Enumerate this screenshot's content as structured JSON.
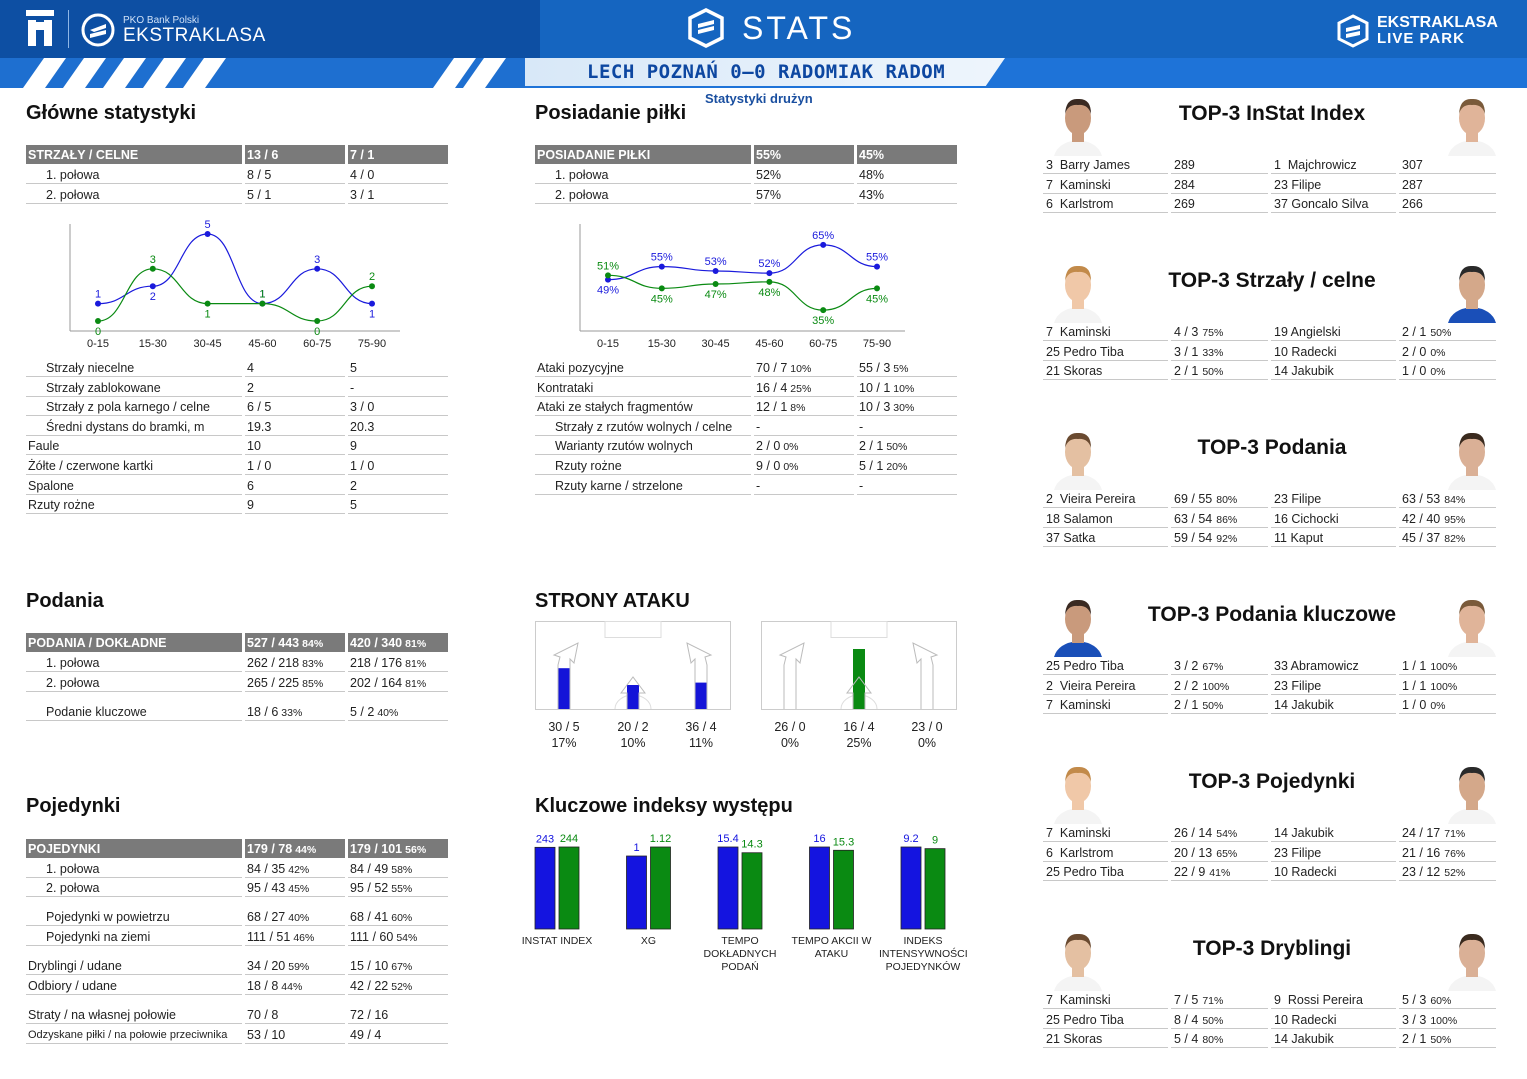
{
  "header": {
    "pko_small": "PKO Bank Polski",
    "league": "EKSTRAKLASA",
    "stats": "STATS",
    "lp_line1": "EKSTRAKLASA",
    "lp_line2": "LIVE PARK",
    "match": "LECH POZNAŃ 0–0 RADOMIAK RADOM",
    "subtitle": "Statystyki drużyn",
    "colors": {
      "primary": "#1565c0",
      "team1": "#1a1adc",
      "team2": "#0a8a12"
    }
  },
  "main": {
    "title": "Główne statystyki",
    "head": [
      "STRZAŁY / CELNE",
      "13 / 6",
      "7 / 1"
    ],
    "halves": [
      [
        "1. połowa",
        "8 / 5",
        "4 / 0"
      ],
      [
        "2. połowa",
        "5 / 1",
        "3 / 1"
      ]
    ],
    "rows": [
      [
        "Strzały niecelne",
        "4",
        "5",
        1
      ],
      [
        "Strzały zablokowane",
        "2",
        "-",
        1
      ],
      [
        "Strzały z pola karnego / celne",
        "6 / 5",
        "3 / 0",
        1
      ],
      [
        "Średni dystans do bramki, m",
        "19.3",
        "20.3",
        1
      ],
      [
        "Faule",
        "10",
        "9",
        0
      ],
      [
        "Żółte / czerwone kartki",
        "1 / 0",
        "1 / 0",
        0
      ],
      [
        "Spalone",
        "6",
        "2",
        0
      ],
      [
        "Rzuty rożne",
        "9",
        "5",
        0
      ]
    ]
  },
  "shots_chart": {
    "type": "line",
    "categories": [
      "0-15",
      "15-30",
      "30-45",
      "45-60",
      "60-75",
      "75-90"
    ],
    "series": [
      {
        "values": [
          1,
          2,
          5,
          1,
          3,
          1
        ],
        "color": "#1a1adc"
      },
      {
        "values": [
          0,
          3,
          1,
          1,
          0,
          2
        ],
        "color": "#0a8a12"
      }
    ],
    "ylim": [
      0,
      5
    ]
  },
  "possession": {
    "title": "Posiadanie piłki",
    "head": [
      "POSIADANIE PIŁKI",
      "55%",
      "45%"
    ],
    "halves": [
      [
        "1. połowa",
        "52%",
        "48%"
      ],
      [
        "2. połowa",
        "57%",
        "43%"
      ]
    ],
    "rows": [
      [
        "Ataki pozycyjne",
        "70 / 7",
        "10%",
        "55 / 3",
        "5%",
        0
      ],
      [
        "Kontrataki",
        "16 / 4",
        "25%",
        "10 / 1",
        "10%",
        0
      ],
      [
        "Ataki ze stałych fragmentów",
        "12 / 1",
        "8%",
        "10 / 3",
        "30%",
        0
      ],
      [
        "Strzały z rzutów wolnych / celne",
        "-",
        "",
        "-",
        "",
        1
      ],
      [
        "Warianty rzutów wolnych",
        "2 / 0",
        "0%",
        "2 / 1",
        "50%",
        1
      ],
      [
        "Rzuty rożne",
        "9 / 0",
        "0%",
        "5 / 1",
        "20%",
        1
      ],
      [
        "Rzuty karne / strzelone",
        "-",
        "",
        "-",
        "",
        1
      ]
    ]
  },
  "poss_chart": {
    "type": "line",
    "categories": [
      "0-15",
      "15-30",
      "30-45",
      "45-60",
      "60-75",
      "75-90"
    ],
    "series": [
      {
        "values": [
          49,
          55,
          53,
          52,
          65,
          55
        ],
        "labels": [
          "49%",
          "55%",
          "53%",
          "52%",
          "65%",
          "55%"
        ],
        "color": "#1a1adc"
      },
      {
        "values": [
          51,
          45,
          47,
          48,
          35,
          45
        ],
        "labels": [
          "51%",
          "45%",
          "47%",
          "48%",
          "35%",
          "45%"
        ],
        "color": "#0a8a12"
      }
    ],
    "ylim": [
      30,
      70
    ]
  },
  "passes": {
    "title": "Podania",
    "head": [
      "PODANIA / DOKŁADNE",
      "527 / 443",
      "84%",
      "420 / 340",
      "81%"
    ],
    "rows": [
      [
        "1. połowa",
        "262 / 218",
        "83%",
        "218 / 176",
        "81%"
      ],
      [
        "2. połowa",
        "265 / 225",
        "85%",
        "202 / 164",
        "81%"
      ],
      [
        "Podanie kluczowe",
        "18 / 6",
        "33%",
        "5 / 2",
        "40%"
      ]
    ]
  },
  "attack_sides": {
    "title": "STRONY ATAKU",
    "team1": [
      {
        "value": "30 / 5",
        "pct": "17%",
        "fill": 0.17
      },
      {
        "value": "20 / 2",
        "pct": "10%",
        "fill": 0.1
      },
      {
        "value": "36 / 4",
        "pct": "11%",
        "fill": 0.11
      }
    ],
    "team2": [
      {
        "value": "26 / 0",
        "pct": "0%",
        "fill": 0
      },
      {
        "value": "16 / 4",
        "pct": "25%",
        "fill": 0.25
      },
      {
        "value": "23 / 0",
        "pct": "0%",
        "fill": 0
      }
    ]
  },
  "duels": {
    "title": "Pojedynki",
    "head": [
      "POJEDYNKI",
      "179 / 78",
      "44%",
      "179 / 101",
      "56%"
    ],
    "rows": [
      [
        "1. połowa",
        "84 / 35",
        "42%",
        "84 / 49",
        "58%",
        1
      ],
      [
        "2. połowa",
        "95 / 43",
        "45%",
        "95 / 52",
        "55%",
        1
      ],
      [
        "Pojedynki w powietrzu",
        "68 / 27",
        "40%",
        "68 / 41",
        "60%",
        1
      ],
      [
        "Pojedynki na ziemi",
        "111 / 51",
        "46%",
        "111 / 60",
        "54%",
        1
      ],
      [
        "Dryblingi / udane",
        "34 / 20",
        "59%",
        "15 / 10",
        "67%",
        0
      ],
      [
        "Odbiory / udane",
        "18 / 8",
        "44%",
        "42 / 22",
        "52%",
        0
      ],
      [
        "Straty / na własnej połowie",
        "70 / 8",
        "",
        "72 / 16",
        "",
        0
      ],
      [
        "Odzyskane piłki / na połowie przeciwnika",
        "53 / 10",
        "",
        "49 / 4",
        "",
        0
      ]
    ]
  },
  "key_index": {
    "title": "Kluczowe indeksy występu",
    "type": "bar",
    "groups": [
      {
        "label": "INSTAT INDEX",
        "v1": "243",
        "v2": "244",
        "r1": 0.996,
        "r2": 1.0
      },
      {
        "label": "XG",
        "v1": "1",
        "v2": "1.12",
        "r1": 0.89,
        "r2": 1.0
      },
      {
        "label": "TEMPO DOKŁADNYCH PODAŃ",
        "v1": "15.4",
        "v2": "14.3",
        "r1": 1.0,
        "r2": 0.93
      },
      {
        "label": "TEMPO AKCII W ATAKU",
        "v1": "16",
        "v2": "15.3",
        "r1": 1.0,
        "r2": 0.96
      },
      {
        "label": "INDEKS INTENSYWNOŚCI POJEDYNKÓW",
        "v1": "9.2",
        "v2": "9",
        "r1": 1.0,
        "r2": 0.98
      }
    ]
  },
  "top3": [
    {
      "title": "TOP-3 InStat Index",
      "rows": [
        [
          "3  Barry James",
          "289",
          "",
          "1  Majchrowicz",
          "307",
          ""
        ],
        [
          "7  Kaminski",
          "284",
          "",
          "23 Filipe",
          "287",
          ""
        ],
        [
          "6  Karlstrom",
          "269",
          "",
          "37 Goncalo Silva",
          "266",
          ""
        ]
      ]
    },
    {
      "title": "TOP-3 Strzały / celne",
      "rows": [
        [
          "7  Kaminski",
          "4 / 3",
          "75%",
          "19 Angielski",
          "2 / 1",
          "50%"
        ],
        [
          "25 Pedro Tiba",
          "3 / 1",
          "33%",
          "10 Radecki",
          "2 / 0",
          "0%"
        ],
        [
          "21 Skoras",
          "2 / 1",
          "50%",
          "14 Jakubik",
          "1 / 0",
          "0%"
        ]
      ]
    },
    {
      "title": "TOP-3 Podania",
      "rows": [
        [
          "2  Vieira Pereira",
          "69 / 55",
          "80%",
          "23 Filipe",
          "63 / 53",
          "84%"
        ],
        [
          "18 Salamon",
          "63 / 54",
          "86%",
          "16 Cichocki",
          "42 / 40",
          "95%"
        ],
        [
          "37 Satka",
          "59 / 54",
          "92%",
          "11 Kaput",
          "45 / 37",
          "82%"
        ]
      ]
    },
    {
      "title": "TOP-3 Podania kluczowe",
      "rows": [
        [
          "25 Pedro Tiba",
          "3 / 2",
          "67%",
          "33 Abramowicz",
          "1 / 1",
          "100%"
        ],
        [
          "2  Vieira Pereira",
          "2 / 2",
          "100%",
          "23 Filipe",
          "1 / 1",
          "100%"
        ],
        [
          "7  Kaminski",
          "2 / 1",
          "50%",
          "14 Jakubik",
          "1 / 0",
          "0%"
        ]
      ]
    },
    {
      "title": "TOP-3 Pojedynki",
      "rows": [
        [
          "7  Kaminski",
          "26 / 14",
          "54%",
          "14 Jakubik",
          "24 / 17",
          "71%"
        ],
        [
          "6  Karlstrom",
          "20 / 13",
          "65%",
          "23 Filipe",
          "21 / 16",
          "76%"
        ],
        [
          "25 Pedro Tiba",
          "22 / 9",
          "41%",
          "10 Radecki",
          "23 / 12",
          "52%"
        ]
      ]
    },
    {
      "title": "TOP-3 Dryblingi",
      "rows": [
        [
          "7  Kaminski",
          "7 / 5",
          "71%",
          "9  Rossi Pereira",
          "5 / 3",
          "60%"
        ],
        [
          "25 Pedro Tiba",
          "8 / 4",
          "50%",
          "10 Radecki",
          "3 / 3",
          "100%"
        ],
        [
          "21 Skoras",
          "5 / 4",
          "80%",
          "14 Jakubik",
          "2 / 1",
          "50%"
        ]
      ]
    }
  ]
}
